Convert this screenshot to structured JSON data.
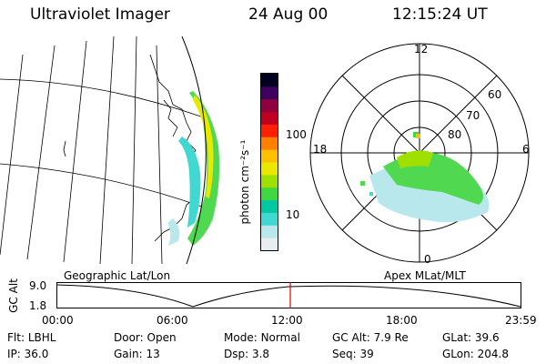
{
  "header": {
    "instrument": "Ultraviolet Imager",
    "date": "24 Aug 00",
    "time": "12:15:24 UT"
  },
  "colorbar": {
    "label": "photon cm⁻²s⁻¹",
    "ticks": [
      "100",
      "10"
    ],
    "scale": "log",
    "colors": [
      "#e8eef0",
      "#b8e8ec",
      "#40d8d0",
      "#00c8a0",
      "#40d840",
      "#a0e000",
      "#e8e800",
      "#ffc000",
      "#ff8000",
      "#ff2000",
      "#c00020",
      "#900040",
      "#400060",
      "#000020"
    ]
  },
  "polar_plot": {
    "mlt_labels": [
      "12",
      "18",
      "6",
      "0"
    ],
    "lat_labels": [
      "60",
      "70",
      "80"
    ]
  },
  "timeline": {
    "left_caption": "Geographic Lat/Lon",
    "right_caption": "Apex MLat/MLT",
    "axis_title": "GC Alt",
    "y_ticks": [
      "9.0",
      "1.8"
    ],
    "x_ticks": [
      "00:00",
      "06:00",
      "12:00",
      "18:00",
      "23:59"
    ],
    "current_time_marker": "12:15:24",
    "marker_color": "#e00000"
  },
  "status": {
    "row1": [
      {
        "key": "Flt:",
        "value": "LBHL"
      },
      {
        "key": "Door:",
        "value": "Open"
      },
      {
        "key": "Mode:",
        "value": "Normal"
      },
      {
        "key": "GC Alt:",
        "value": "7.9 Re"
      },
      {
        "key": "GLat:",
        "value": "39.6"
      }
    ],
    "row2": [
      {
        "key": "IP:",
        "value": "36.0"
      },
      {
        "key": "Gain:",
        "value": "13"
      },
      {
        "key": "Dsp:",
        "value": "3.8"
      },
      {
        "key": "Seq:",
        "value": "39"
      },
      {
        "key": "GLon:",
        "value": "204.8"
      }
    ]
  }
}
